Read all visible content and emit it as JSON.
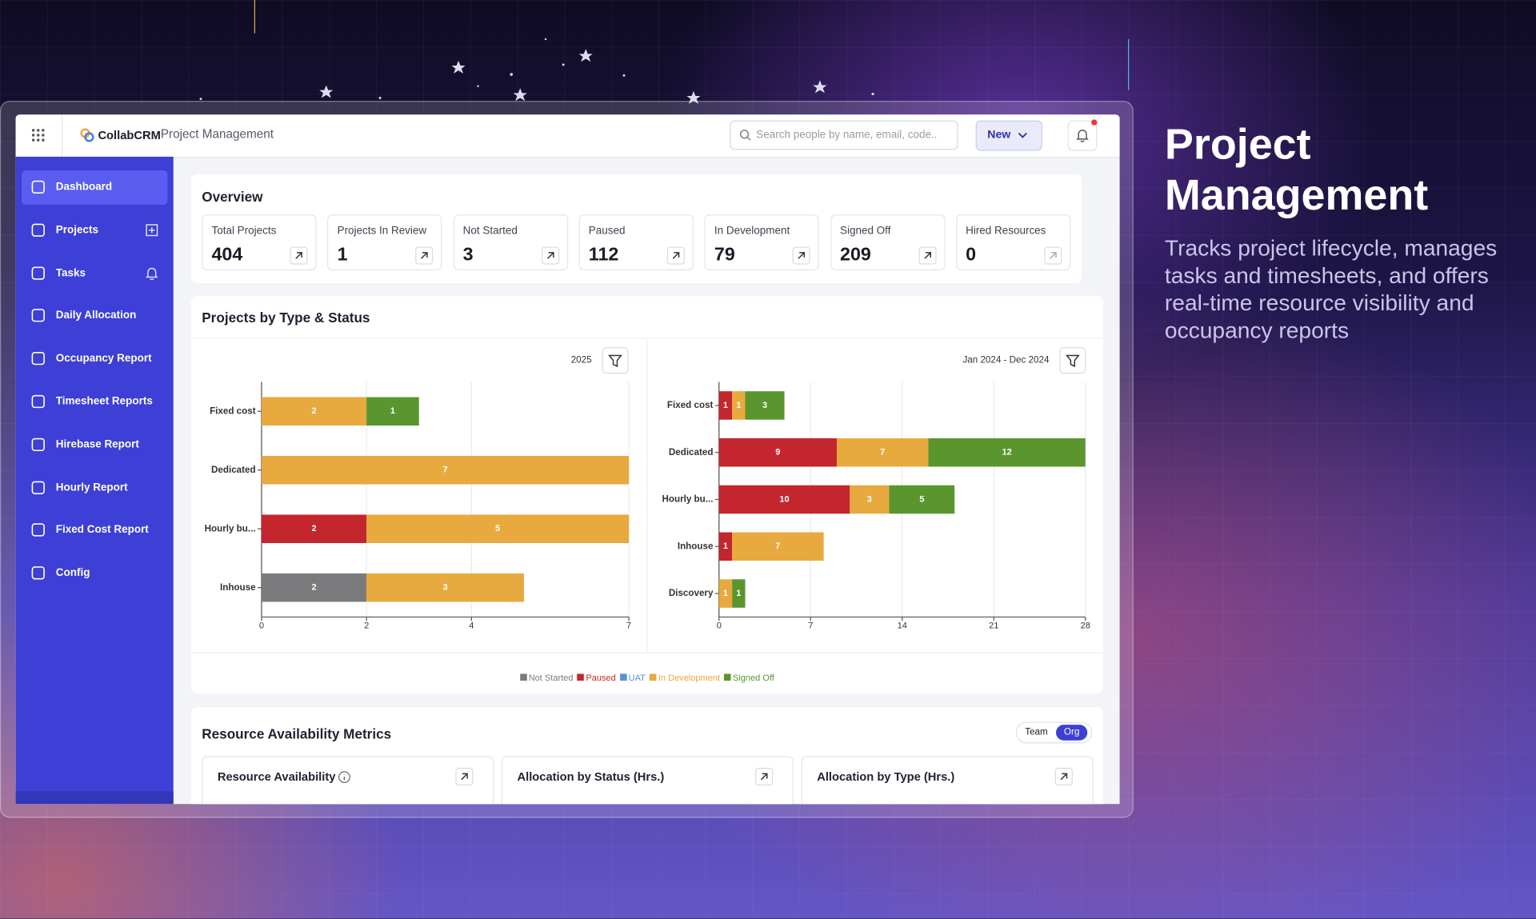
{
  "hero": {
    "title": "Project Management",
    "description": "Tracks project lifecycle, manages tasks and timesheets, and offers real-time resource visibility and occupancy reports"
  },
  "header": {
    "brand": "CollabCRM",
    "product": "Project Management",
    "search_placeholder": "Search people by name, email, code..",
    "new_button": "New"
  },
  "sidebar": [
    "Dashboard",
    "Projects",
    "Tasks",
    "Daily Allocation",
    "Occupancy Report",
    "Timesheet Reports",
    "Hirebase Report",
    "Hourly Report",
    "Fixed Cost Report",
    "Config"
  ],
  "overview": {
    "title": "Overview",
    "kpis": [
      {
        "label": "Total Projects",
        "value": 404
      },
      {
        "label": "Projects In Review",
        "value": 1
      },
      {
        "label": "Not Started",
        "value": 3
      },
      {
        "label": "Paused",
        "value": 112
      },
      {
        "label": "In Development",
        "value": 79
      },
      {
        "label": "Signed Off",
        "value": 209
      },
      {
        "label": "Hired Resources",
        "value": 0
      }
    ]
  },
  "projects_card": {
    "title": "Projects by Type & Status"
  },
  "chart_data": [
    {
      "type": "bar",
      "orientation": "horizontal",
      "stacked": true,
      "filter": "2025",
      "categories": [
        "Fixed cost",
        "Dedicated",
        "Hourly bu...",
        "Inhouse"
      ],
      "series": [
        {
          "name": "Not Started",
          "color": "#7b7b7d",
          "values": [
            null,
            null,
            null,
            2
          ]
        },
        {
          "name": "Paused",
          "color": "#c4262e",
          "values": [
            null,
            null,
            2,
            null
          ]
        },
        {
          "name": "UAT",
          "color": "#5b8fd9",
          "values": [
            null,
            null,
            null,
            null
          ]
        },
        {
          "name": "In Development",
          "color": "#e8a93f",
          "values": [
            2,
            7,
            5,
            3
          ]
        },
        {
          "name": "Signed Off",
          "color": "#5a962d",
          "values": [
            1,
            null,
            null,
            null
          ]
        }
      ],
      "xlim": [
        0,
        7
      ],
      "xticks": [
        0,
        2,
        4,
        7
      ],
      "grid": true
    },
    {
      "type": "bar",
      "orientation": "horizontal",
      "stacked": true,
      "filter": "Jan 2024 - Dec 2024",
      "categories": [
        "Fixed cost",
        "Dedicated",
        "Hourly bu...",
        "Inhouse",
        "Discovery"
      ],
      "series": [
        {
          "color": "#c4262e",
          "values": [
            1,
            9,
            10,
            1,
            null
          ]
        },
        {
          "color": "#e8a93f",
          "values": [
            1,
            7,
            3,
            7,
            1
          ]
        },
        {
          "color": "#5a962d",
          "values": [
            3,
            12,
            5,
            null,
            1
          ]
        }
      ],
      "xlim": [
        0,
        28
      ],
      "xticks": [
        0,
        7,
        14,
        21,
        28
      ],
      "grid": true
    }
  ],
  "resource_card": {
    "title": "Resource Availability Metrics",
    "toggle": [
      "Team",
      "Org"
    ],
    "panels": [
      "Resource Availability",
      "Allocation by Status (Hrs.)",
      "Allocation by Type (Hrs.)"
    ]
  }
}
